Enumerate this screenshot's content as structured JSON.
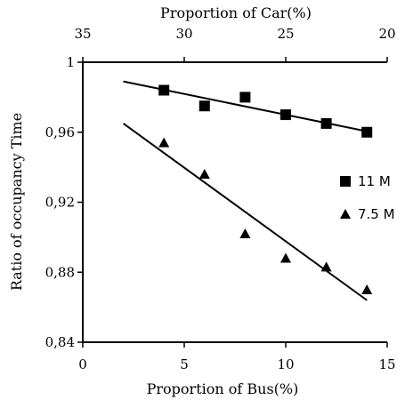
{
  "chart_data": {
    "type": "scatter",
    "title": "",
    "xlabel": "Proportion of Bus(%)",
    "x2label": "Proportion of Car(%)",
    "ylabel": "Ratio of occupancy Time",
    "xlim": [
      0,
      15
    ],
    "x2lim": [
      35,
      20
    ],
    "ylim": [
      0.84,
      1.0
    ],
    "xticks": [
      0,
      5,
      10,
      15
    ],
    "xtick_labels": [
      "0",
      "5",
      "10",
      "15"
    ],
    "x2ticks": [
      35,
      30,
      25,
      20
    ],
    "x2tick_labels": [
      "35",
      "30",
      "25",
      "20"
    ],
    "yticks": [
      0.84,
      0.88,
      0.92,
      0.96,
      1.0
    ],
    "ytick_labels": [
      "0,84",
      "0,88",
      "0,92",
      "0,96",
      "1"
    ],
    "grid": false,
    "legend_position": "right",
    "series": [
      {
        "name": "11 M",
        "marker": "square",
        "color": "#000000",
        "x": [
          4,
          6,
          8,
          10,
          12,
          14
        ],
        "y": [
          0.984,
          0.975,
          0.98,
          0.97,
          0.965,
          0.96
        ],
        "trendline": {
          "x": [
            2,
            14
          ],
          "y": [
            0.989,
            0.9605
          ]
        }
      },
      {
        "name": "7.5 M",
        "marker": "triangle",
        "color": "#000000",
        "x": [
          4,
          6,
          8,
          10,
          12,
          14
        ],
        "y": [
          0.954,
          0.936,
          0.902,
          0.888,
          0.883,
          0.87
        ],
        "trendline": {
          "x": [
            2,
            14
          ],
          "y": [
            0.965,
            0.864
          ]
        }
      }
    ]
  }
}
